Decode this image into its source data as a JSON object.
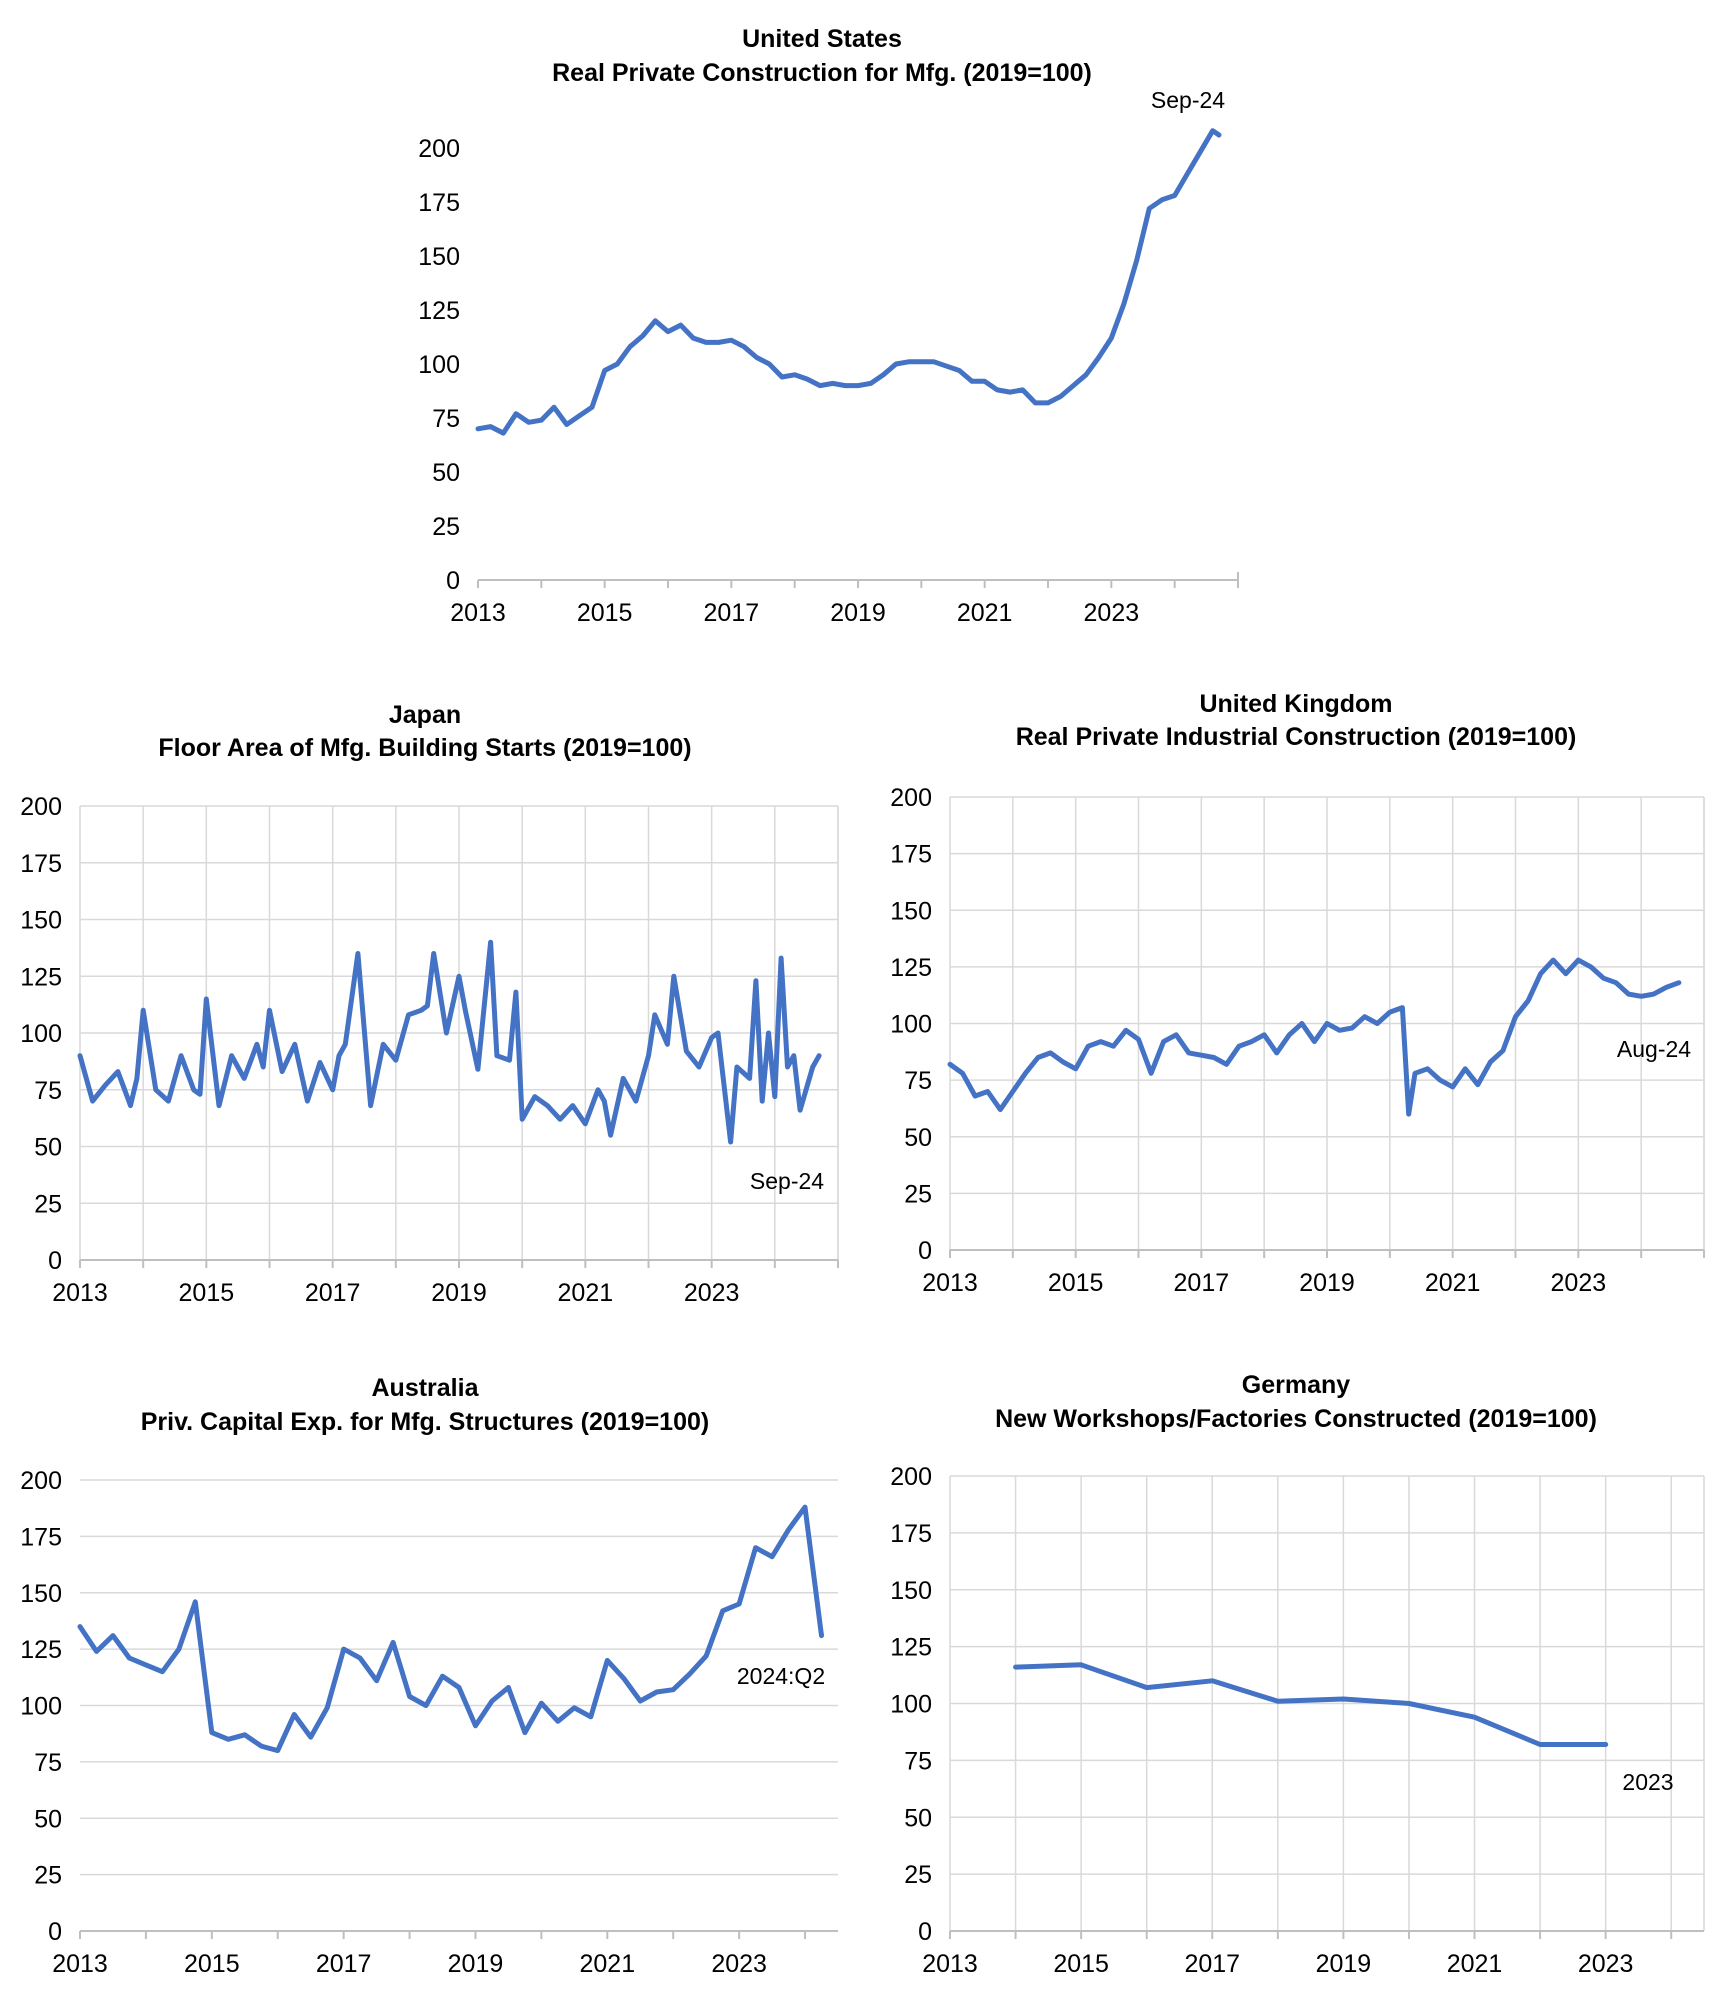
{
  "chart_data": [
    {
      "id": "us",
      "type": "line",
      "title": [
        "United States",
        "Real Private Construction for Mfg. (2019=100)"
      ],
      "xlabel": "",
      "ylabel": "",
      "xlim": [
        2013,
        2025
      ],
      "ylim": [
        0,
        200
      ],
      "yticks": [
        0,
        25,
        50,
        75,
        100,
        125,
        150,
        175,
        200
      ],
      "xticks": [
        "2013",
        "2015",
        "2017",
        "2019",
        "2021",
        "2023"
      ],
      "grid": "none",
      "annotation": "Sep-24",
      "series": [
        {
          "name": "United States",
          "x": [
            2013.0,
            2013.2,
            2013.4,
            2013.6,
            2013.8,
            2014.0,
            2014.2,
            2014.4,
            2014.6,
            2014.8,
            2015.0,
            2015.2,
            2015.4,
            2015.6,
            2015.8,
            2016.0,
            2016.2,
            2016.4,
            2016.6,
            2016.8,
            2017.0,
            2017.2,
            2017.4,
            2017.6,
            2017.8,
            2018.0,
            2018.2,
            2018.4,
            2018.6,
            2018.8,
            2019.0,
            2019.2,
            2019.4,
            2019.6,
            2019.8,
            2020.0,
            2020.2,
            2020.4,
            2020.6,
            2020.8,
            2021.0,
            2021.2,
            2021.4,
            2021.6,
            2021.8,
            2022.0,
            2022.2,
            2022.4,
            2022.6,
            2022.8,
            2023.0,
            2023.2,
            2023.4,
            2023.6,
            2023.8,
            2024.0,
            2024.2,
            2024.4,
            2024.6,
            2024.7
          ],
          "values": [
            70,
            71,
            68,
            77,
            73,
            74,
            80,
            72,
            76,
            80,
            97,
            100,
            108,
            113,
            120,
            115,
            118,
            112,
            110,
            110,
            111,
            108,
            103,
            100,
            94,
            95,
            93,
            90,
            91,
            90,
            90,
            91,
            95,
            100,
            101,
            101,
            101,
            99,
            97,
            92,
            92,
            88,
            87,
            88,
            82,
            82,
            85,
            90,
            95,
            103,
            112,
            128,
            148,
            172,
            176,
            178,
            188,
            198,
            208,
            206
          ],
          "color": "#4472c4"
        }
      ]
    },
    {
      "id": "japan",
      "type": "line",
      "title": [
        "Japan",
        "Floor Area of Mfg. Building Starts (2019=100)"
      ],
      "xlabel": "",
      "ylabel": "",
      "xlim": [
        2013,
        2025
      ],
      "ylim": [
        0,
        200
      ],
      "yticks": [
        0,
        25,
        50,
        75,
        100,
        125,
        150,
        175,
        200
      ],
      "xticks": [
        "2013",
        "2015",
        "2017",
        "2019",
        "2021",
        "2023"
      ],
      "grid": "both",
      "annotation": "Sep-24",
      "series": [
        {
          "name": "Japan",
          "x": [
            2013.0,
            2013.2,
            2013.4,
            2013.6,
            2013.8,
            2013.9,
            2014.0,
            2014.2,
            2014.4,
            2014.6,
            2014.8,
            2014.9,
            2015.0,
            2015.2,
            2015.4,
            2015.6,
            2015.8,
            2015.9,
            2016.0,
            2016.2,
            2016.4,
            2016.6,
            2016.8,
            2017.0,
            2017.1,
            2017.2,
            2017.4,
            2017.6,
            2017.8,
            2018.0,
            2018.2,
            2018.4,
            2018.5,
            2018.6,
            2018.8,
            2019.0,
            2019.1,
            2019.3,
            2019.5,
            2019.6,
            2019.8,
            2019.9,
            2020.0,
            2020.2,
            2020.4,
            2020.6,
            2020.8,
            2021.0,
            2021.2,
            2021.3,
            2021.4,
            2021.6,
            2021.8,
            2022.0,
            2022.1,
            2022.3,
            2022.4,
            2022.6,
            2022.8,
            2023.0,
            2023.1,
            2023.3,
            2023.4,
            2023.6,
            2023.7,
            2023.8,
            2023.9,
            2024.0,
            2024.1,
            2024.2,
            2024.3,
            2024.4,
            2024.6,
            2024.7
          ],
          "values": [
            90,
            70,
            77,
            83,
            68,
            80,
            110,
            75,
            70,
            90,
            75,
            73,
            115,
            68,
            90,
            80,
            95,
            85,
            110,
            83,
            95,
            70,
            87,
            75,
            90,
            95,
            135,
            68,
            95,
            88,
            108,
            110,
            112,
            135,
            100,
            125,
            110,
            84,
            140,
            90,
            88,
            118,
            62,
            72,
            68,
            62,
            68,
            60,
            75,
            70,
            55,
            80,
            70,
            90,
            108,
            95,
            125,
            92,
            85,
            98,
            100,
            52,
            85,
            80,
            123,
            70,
            100,
            72,
            133,
            85,
            90,
            66,
            85,
            90
          ],
          "color": "#4472c4"
        }
      ]
    },
    {
      "id": "uk",
      "type": "line",
      "title": [
        "United Kingdom",
        "Real Private Industrial Construction (2019=100)"
      ],
      "xlabel": "",
      "ylabel": "",
      "xlim": [
        2013,
        2025
      ],
      "ylim": [
        0,
        200
      ],
      "yticks": [
        0,
        25,
        50,
        75,
        100,
        125,
        150,
        175,
        200
      ],
      "xticks": [
        "2013",
        "2015",
        "2017",
        "2019",
        "2021",
        "2023"
      ],
      "grid": "both",
      "annotation": "Aug-24",
      "series": [
        {
          "name": "United Kingdom",
          "x": [
            2013.0,
            2013.2,
            2013.4,
            2013.6,
            2013.8,
            2014.0,
            2014.2,
            2014.4,
            2014.6,
            2014.8,
            2015.0,
            2015.2,
            2015.4,
            2015.6,
            2015.8,
            2016.0,
            2016.2,
            2016.4,
            2016.6,
            2016.8,
            2017.0,
            2017.2,
            2017.4,
            2017.6,
            2017.8,
            2018.0,
            2018.2,
            2018.4,
            2018.6,
            2018.8,
            2019.0,
            2019.2,
            2019.4,
            2019.6,
            2019.8,
            2020.0,
            2020.2,
            2020.3,
            2020.4,
            2020.6,
            2020.8,
            2021.0,
            2021.2,
            2021.4,
            2021.6,
            2021.8,
            2022.0,
            2022.2,
            2022.4,
            2022.6,
            2022.8,
            2023.0,
            2023.2,
            2023.4,
            2023.6,
            2023.8,
            2024.0,
            2024.2,
            2024.4,
            2024.6
          ],
          "values": [
            82,
            78,
            68,
            70,
            62,
            70,
            78,
            85,
            87,
            83,
            80,
            90,
            92,
            90,
            97,
            93,
            78,
            92,
            95,
            87,
            86,
            85,
            82,
            90,
            92,
            95,
            87,
            95,
            100,
            92,
            100,
            97,
            98,
            103,
            100,
            105,
            107,
            60,
            78,
            80,
            75,
            72,
            80,
            73,
            83,
            88,
            103,
            110,
            122,
            128,
            122,
            128,
            125,
            120,
            118,
            113,
            112,
            113,
            116,
            118
          ],
          "color": "#4472c4"
        }
      ]
    },
    {
      "id": "australia",
      "type": "line",
      "title": [
        "Australia",
        "Priv. Capital Exp. for Mfg. Structures (2019=100)"
      ],
      "xlabel": "",
      "ylabel": "",
      "xlim": [
        2013,
        2024.5
      ],
      "ylim": [
        0,
        200
      ],
      "yticks": [
        0,
        25,
        50,
        75,
        100,
        125,
        150,
        175,
        200
      ],
      "xticks": [
        "2013",
        "2015",
        "2017",
        "2019",
        "2021",
        "2023"
      ],
      "grid": "horizontal",
      "annotation": "2024:Q2",
      "series": [
        {
          "name": "Australia",
          "x": [
            2013.0,
            2013.25,
            2013.5,
            2013.75,
            2014.0,
            2014.25,
            2014.5,
            2014.75,
            2015.0,
            2015.25,
            2015.5,
            2015.75,
            2016.0,
            2016.25,
            2016.5,
            2016.75,
            2017.0,
            2017.25,
            2017.5,
            2017.75,
            2018.0,
            2018.25,
            2018.5,
            2018.75,
            2019.0,
            2019.25,
            2019.5,
            2019.75,
            2020.0,
            2020.25,
            2020.5,
            2020.75,
            2021.0,
            2021.25,
            2021.5,
            2021.75,
            2022.0,
            2022.25,
            2022.5,
            2022.75,
            2023.0,
            2023.25,
            2023.5,
            2023.75,
            2024.0,
            2024.25
          ],
          "values": [
            135,
            124,
            131,
            121,
            118,
            115,
            125,
            146,
            88,
            85,
            87,
            82,
            80,
            96,
            86,
            99,
            125,
            121,
            111,
            128,
            104,
            100,
            113,
            108,
            91,
            102,
            108,
            88,
            101,
            93,
            99,
            95,
            120,
            112,
            102,
            106,
            107,
            114,
            122,
            142,
            145,
            170,
            166,
            178,
            188,
            131
          ],
          "color": "#4472c4"
        }
      ]
    },
    {
      "id": "germany",
      "type": "line",
      "title": [
        "Germany",
        "New Workshops/Factories Constructed (2019=100)"
      ],
      "xlabel": "",
      "ylabel": "",
      "xlim": [
        2013,
        2024.5
      ],
      "ylim": [
        0,
        200
      ],
      "yticks": [
        0,
        25,
        50,
        75,
        100,
        125,
        150,
        175,
        200
      ],
      "xticks": [
        "2013",
        "2015",
        "2017",
        "2019",
        "2021",
        "2023"
      ],
      "grid": "both",
      "annotation": "2023",
      "series": [
        {
          "name": "Germany",
          "x": [
            2014,
            2015,
            2016,
            2017,
            2018,
            2019,
            2020,
            2021,
            2022,
            2023
          ],
          "values": [
            116,
            117,
            107,
            110,
            101,
            102,
            100,
            94,
            82,
            82
          ],
          "color": "#4472c4"
        }
      ]
    }
  ]
}
